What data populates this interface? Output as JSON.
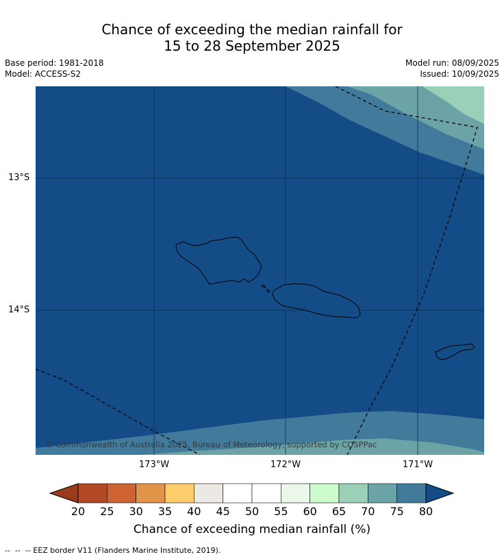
{
  "header": {
    "title_line1": "Chance of exceeding the median rainfall for",
    "title_line2": "15 to 28 September 2025",
    "base_period": "Base period: 1981-2018",
    "model": "Model: ACCESS-S2",
    "model_run": "Model run: 08/09/2025",
    "issued": "Issued: 10/09/2025"
  },
  "map": {
    "lat_labels": [
      "13°S",
      "14°S"
    ],
    "lon_labels": [
      "173°W",
      "172°W",
      "171°W"
    ],
    "copyright": "© Commonwealth of Australia 2025, Bureau of Meteorology, supported by COSPPac",
    "colors": {
      "band_80plus": "#134c86",
      "band_75_80": "#417a9a",
      "band_70_75": "#6ba3a6",
      "band_65_70": "#9bcfb7"
    }
  },
  "colorbar": {
    "ticks": [
      "20",
      "25",
      "30",
      "35",
      "40",
      "45",
      "50",
      "55",
      "60",
      "65",
      "70",
      "75",
      "80"
    ],
    "colors": [
      "#b34a25",
      "#cd6332",
      "#e2954a",
      "#fdcc6b",
      "#ece8e3",
      "#ffffff",
      "#ffffff",
      "#eaf7ea",
      "#ccfccc",
      "#9bcfb7",
      "#6ba3a6",
      "#417a9a"
    ],
    "under_color": "#9c3a1c",
    "over_color": "#134c86",
    "label": "Chance of exceeding median rainfall (%)"
  },
  "footnote": "--  --  -- EEZ border V11 (Flanders Marine Institute, 2019)."
}
